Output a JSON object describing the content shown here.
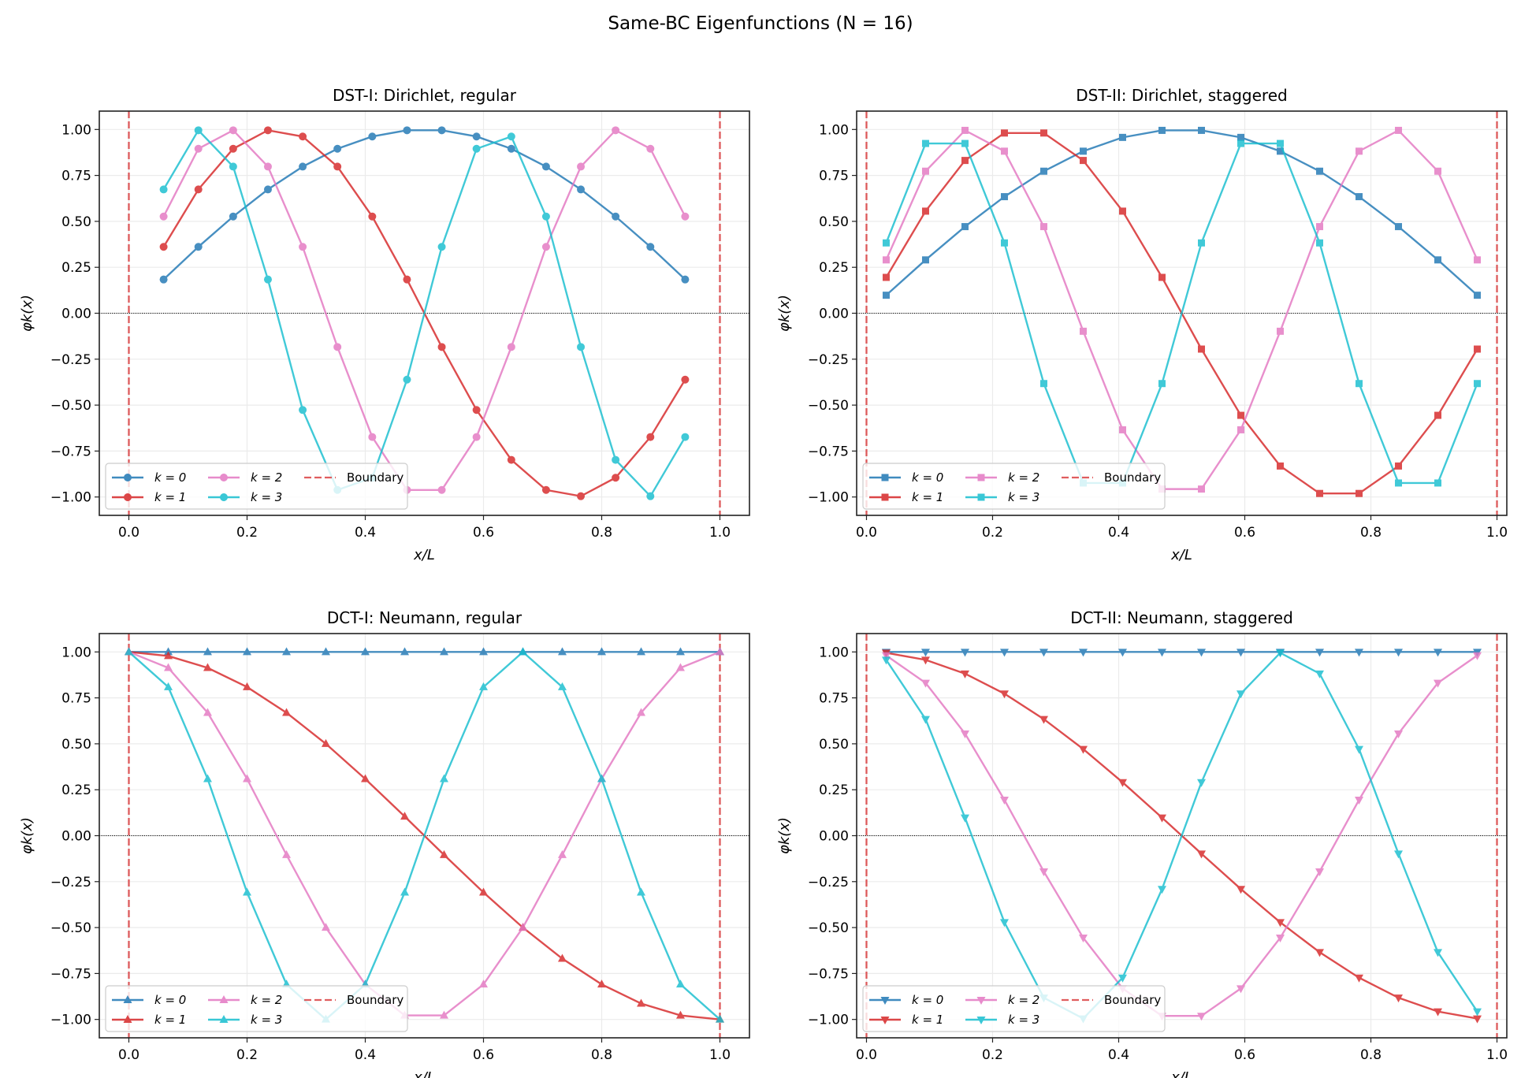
{
  "suptitle": "Same-BC Eigenfunctions (N = 16)",
  "colors": {
    "k0": "#1f77b4",
    "k1": "#d62728",
    "k2": "#e377c2",
    "k3": "#17becf",
    "boundary": "#d62728"
  },
  "chart_data": [
    {
      "type": "line",
      "title": "DST-I: Dirichlet, regular",
      "xlabel": "x/L",
      "ylabel": "φk(x)",
      "marker": "circle",
      "xlim": [
        -0.05,
        1.05
      ],
      "ylim": [
        -1.1,
        1.1
      ],
      "xticks": [
        "0.0",
        "0.2",
        "0.4",
        "0.6",
        "0.8",
        "1.0"
      ],
      "yticks": [
        "−1.00",
        "−0.75",
        "−0.50",
        "−0.25",
        "0.00",
        "0.25",
        "0.50",
        "0.75",
        "1.00"
      ],
      "grid": true,
      "legend": "lower-left",
      "boundary_label": "Boundary",
      "boundaries": [
        0,
        1
      ],
      "x": [
        0.0588,
        0.1176,
        0.1765,
        0.2353,
        0.2941,
        0.3529,
        0.4118,
        0.4706,
        0.5294,
        0.5882,
        0.6471,
        0.7059,
        0.7647,
        0.8235,
        0.8824,
        0.9412
      ],
      "series": [
        {
          "name": "k = 0",
          "values": [
            0.1837,
            0.3612,
            0.5264,
            0.6737,
            0.798,
            0.8952,
            0.9618,
            0.9957,
            0.9957,
            0.9618,
            0.8952,
            0.798,
            0.6737,
            0.5264,
            0.3612,
            0.1837
          ]
        },
        {
          "name": "k = 1",
          "values": [
            0.3612,
            0.6737,
            0.8952,
            0.9957,
            0.9618,
            0.798,
            0.5264,
            0.1837,
            -0.1837,
            -0.5264,
            -0.798,
            -0.9618,
            -0.9957,
            -0.8952,
            -0.6737,
            -0.3612
          ]
        },
        {
          "name": "k = 2",
          "values": [
            0.5264,
            0.8952,
            0.9957,
            0.798,
            0.3612,
            -0.1837,
            -0.6737,
            -0.9618,
            -0.9618,
            -0.6737,
            -0.1837,
            0.3612,
            0.798,
            0.9957,
            0.8952,
            0.5264
          ]
        },
        {
          "name": "k = 3",
          "values": [
            0.6737,
            0.9957,
            0.798,
            0.1837,
            -0.5264,
            -0.9618,
            -0.8952,
            -0.3612,
            0.3612,
            0.8952,
            0.9618,
            0.5264,
            -0.1837,
            -0.798,
            -0.9957,
            -0.6737
          ]
        }
      ]
    },
    {
      "type": "line",
      "title": "DST-II: Dirichlet, staggered",
      "xlabel": "x/L",
      "ylabel": "φk(x)",
      "marker": "square",
      "xlim": [
        -0.0156,
        1.0156
      ],
      "ylim": [
        -1.1,
        1.1
      ],
      "xticks": [
        "0.0",
        "0.2",
        "0.4",
        "0.6",
        "0.8",
        "1.0"
      ],
      "yticks": [
        "−1.00",
        "−0.75",
        "−0.50",
        "−0.25",
        "0.00",
        "0.25",
        "0.50",
        "0.75",
        "1.00"
      ],
      "grid": true,
      "legend": "lower-left",
      "boundary_label": "Boundary",
      "boundaries": [
        0,
        1
      ],
      "x": [
        0.03125,
        0.09375,
        0.15625,
        0.21875,
        0.28125,
        0.34375,
        0.40625,
        0.46875,
        0.53125,
        0.59375,
        0.65625,
        0.71875,
        0.78125,
        0.84375,
        0.90625,
        0.96875
      ],
      "series": [
        {
          "name": "k = 0",
          "values": [
            0.098,
            0.2903,
            0.4714,
            0.6344,
            0.773,
            0.8819,
            0.9569,
            0.9952,
            0.9952,
            0.9569,
            0.8819,
            0.773,
            0.6344,
            0.4714,
            0.2903,
            0.098
          ]
        },
        {
          "name": "k = 1",
          "values": [
            0.1951,
            0.5556,
            0.8315,
            0.9808,
            0.9808,
            0.8315,
            0.5556,
            0.1951,
            -0.1951,
            -0.5556,
            -0.8315,
            -0.9808,
            -0.9808,
            -0.8315,
            -0.5556,
            -0.1951
          ]
        },
        {
          "name": "k = 2",
          "values": [
            0.2903,
            0.773,
            0.9952,
            0.8819,
            0.4714,
            -0.098,
            -0.6344,
            -0.9569,
            -0.9569,
            -0.6344,
            -0.098,
            0.4714,
            0.8819,
            0.9952,
            0.773,
            0.2903
          ]
        },
        {
          "name": "k = 3",
          "values": [
            0.3827,
            0.9239,
            0.9239,
            0.3827,
            -0.3827,
            -0.9239,
            -0.9239,
            -0.3827,
            0.3827,
            0.9239,
            0.9239,
            0.3827,
            -0.3827,
            -0.9239,
            -0.9239,
            -0.3827
          ]
        }
      ]
    },
    {
      "type": "line",
      "title": "DCT-I: Neumann, regular",
      "xlabel": "x/L",
      "ylabel": "φk(x)",
      "marker": "triangle-up",
      "xlim": [
        -0.05,
        1.05
      ],
      "ylim": [
        -1.1,
        1.1
      ],
      "xticks": [
        "0.0",
        "0.2",
        "0.4",
        "0.6",
        "0.8",
        "1.0"
      ],
      "yticks": [
        "−1.00",
        "−0.75",
        "−0.50",
        "−0.25",
        "0.00",
        "0.25",
        "0.50",
        "0.75",
        "1.00"
      ],
      "grid": true,
      "legend": "lower-left",
      "boundary_label": "Boundary",
      "boundaries": [
        0,
        1
      ],
      "x": [
        0,
        0.0667,
        0.1333,
        0.2,
        0.2667,
        0.3333,
        0.4,
        0.4667,
        0.5333,
        0.6,
        0.6667,
        0.7333,
        0.8,
        0.8667,
        0.9333,
        1
      ],
      "series": [
        {
          "name": "k = 0",
          "values": [
            1,
            1,
            1,
            1,
            1,
            1,
            1,
            1,
            1,
            1,
            1,
            1,
            1,
            1,
            1,
            1
          ]
        },
        {
          "name": "k = 1",
          "values": [
            1,
            0.9781,
            0.9135,
            0.809,
            0.6691,
            0.5,
            0.309,
            0.1045,
            -0.1045,
            -0.309,
            -0.5,
            -0.6691,
            -0.809,
            -0.9135,
            -0.9781,
            -1
          ]
        },
        {
          "name": "k = 2",
          "values": [
            1,
            0.9135,
            0.6691,
            0.309,
            -0.1045,
            -0.5,
            -0.809,
            -0.9781,
            -0.9781,
            -0.809,
            -0.5,
            -0.1045,
            0.309,
            0.6691,
            0.9135,
            1
          ]
        },
        {
          "name": "k = 3",
          "values": [
            1,
            0.809,
            0.309,
            -0.309,
            -0.809,
            -1,
            -0.809,
            -0.309,
            0.309,
            0.809,
            1,
            0.809,
            0.309,
            -0.309,
            -0.809,
            -1
          ]
        }
      ]
    },
    {
      "type": "line",
      "title": "DCT-II: Neumann, staggered",
      "xlabel": "x/L",
      "ylabel": "φk(x)",
      "marker": "triangle-down",
      "xlim": [
        -0.0156,
        1.0156
      ],
      "ylim": [
        -1.1,
        1.1
      ],
      "xticks": [
        "0.0",
        "0.2",
        "0.4",
        "0.6",
        "0.8",
        "1.0"
      ],
      "yticks": [
        "−1.00",
        "−0.75",
        "−0.50",
        "−0.25",
        "0.00",
        "0.25",
        "0.50",
        "0.75",
        "1.00"
      ],
      "grid": true,
      "legend": "lower-left",
      "boundary_label": "Boundary",
      "boundaries": [
        0,
        1
      ],
      "x": [
        0.03125,
        0.09375,
        0.15625,
        0.21875,
        0.28125,
        0.34375,
        0.40625,
        0.46875,
        0.53125,
        0.59375,
        0.65625,
        0.71875,
        0.78125,
        0.84375,
        0.90625,
        0.96875
      ],
      "series": [
        {
          "name": "k = 0",
          "values": [
            1,
            1,
            1,
            1,
            1,
            1,
            1,
            1,
            1,
            1,
            1,
            1,
            1,
            1,
            1,
            1
          ]
        },
        {
          "name": "k = 1",
          "values": [
            0.9952,
            0.9569,
            0.8819,
            0.773,
            0.6344,
            0.4714,
            0.2903,
            0.098,
            -0.098,
            -0.2903,
            -0.4714,
            -0.6344,
            -0.773,
            -0.8819,
            -0.9569,
            -0.9952
          ]
        },
        {
          "name": "k = 2",
          "values": [
            0.9808,
            0.8315,
            0.5556,
            0.1951,
            -0.1951,
            -0.5556,
            -0.8315,
            -0.9808,
            -0.9808,
            -0.8315,
            -0.5556,
            -0.1951,
            0.1951,
            0.5556,
            0.8315,
            0.9808
          ]
        },
        {
          "name": "k = 3",
          "values": [
            0.9569,
            0.6344,
            0.098,
            -0.4714,
            -0.8819,
            -0.9952,
            -0.773,
            -0.2903,
            0.2903,
            0.773,
            0.9952,
            0.8819,
            0.4714,
            -0.098,
            -0.6344,
            -0.9569
          ]
        }
      ]
    }
  ]
}
